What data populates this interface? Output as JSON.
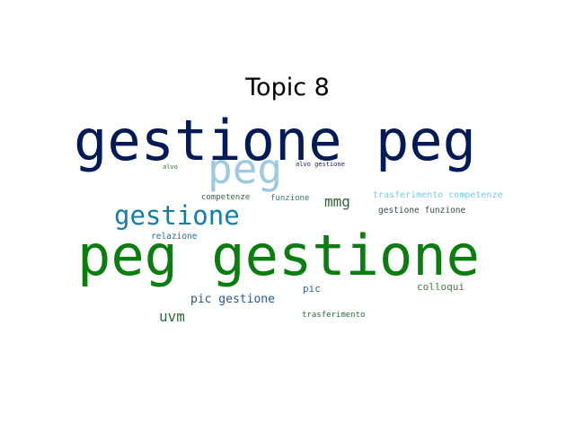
{
  "title": "Topic 8",
  "chart_data": {
    "type": "wordcloud",
    "title": "Topic 8",
    "words": [
      {
        "text": "gestione peg",
        "weight": 1.0,
        "color": "#001a57"
      },
      {
        "text": "peg gestione",
        "weight": 1.0,
        "color": "#0a7d0f"
      },
      {
        "text": "peg",
        "weight": 0.74,
        "color": "#9ecae1"
      },
      {
        "text": "gestione",
        "weight": 0.47,
        "color": "#137fa8"
      },
      {
        "text": "mmg",
        "weight": 0.26,
        "color": "#2e5f38"
      },
      {
        "text": "uvm",
        "weight": 0.26,
        "color": "#2a6b3a"
      },
      {
        "text": "pic gestione",
        "weight": 0.21,
        "color": "#285a8f"
      },
      {
        "text": "colloqui",
        "weight": 0.18,
        "color": "#4d7a4d"
      },
      {
        "text": "pic",
        "weight": 0.18,
        "color": "#2b64a0"
      },
      {
        "text": "trasferimento competenze",
        "weight": 0.16,
        "color": "#7ec8e3"
      },
      {
        "text": "gestione funzione",
        "weight": 0.15,
        "color": "#3a4e45"
      },
      {
        "text": "relazione",
        "weight": 0.15,
        "color": "#2a6b8f"
      },
      {
        "text": "trasferimento",
        "weight": 0.14,
        "color": "#2f6b36"
      },
      {
        "text": "competenze",
        "weight": 0.14,
        "color": "#2f6b36"
      },
      {
        "text": "funzione",
        "weight": 0.14,
        "color": "#2f7c7c"
      },
      {
        "text": "alvo gestione",
        "weight": 0.11,
        "color": "#1a1a5e"
      },
      {
        "text": "alvo",
        "weight": 0.11,
        "color": "#2f6b36"
      }
    ]
  }
}
